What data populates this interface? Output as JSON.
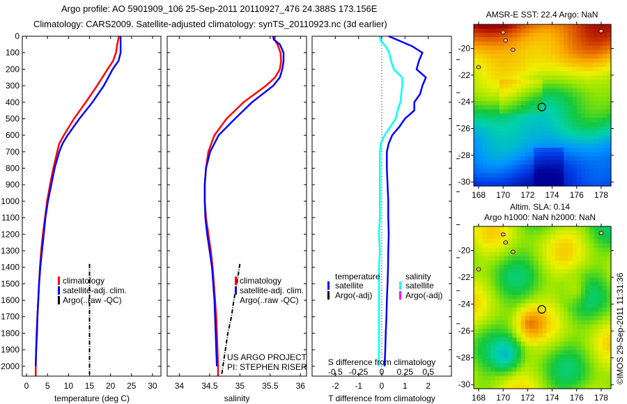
{
  "header": {
    "title_line1": "Argo profile: AO 5901909_106 25-Sep-2011 20110927_476 24.388S 173.156E",
    "title_line2": "Climatology: CARS2009. Satellite-adjusted climatology: synTS_20110923.nc (3d earlier)"
  },
  "colors": {
    "climatology": "#ff0000",
    "satellite": "#0000ff",
    "argo": "#000000",
    "salinity_satellite": "#00ffff",
    "salinity_argo": "#ff00ff"
  },
  "chart_data": [
    {
      "id": "temperature",
      "type": "line",
      "xlabel": "temperature (deg C)",
      "ylabel": "",
      "xlim": [
        -1,
        32
      ],
      "ylim": [
        2060,
        0
      ],
      "xticks": [
        0,
        5,
        10,
        15,
        20,
        25,
        30
      ],
      "yticks": [
        0,
        100,
        200,
        300,
        400,
        500,
        600,
        700,
        800,
        900,
        1000,
        1100,
        1200,
        1300,
        1400,
        1500,
        1600,
        1700,
        1800,
        1900,
        2000
      ],
      "series": [
        {
          "name": "climatology",
          "color": "#ff0000",
          "depth": [
            0,
            50,
            100,
            150,
            200,
            300,
            400,
            500,
            600,
            650,
            700,
            800,
            900,
            1000,
            1100,
            1200,
            1300,
            1400,
            1500,
            1600,
            1700,
            1800,
            1900,
            2000,
            2060
          ],
          "values": [
            22.0,
            21.6,
            21.3,
            20.6,
            19.3,
            16.8,
            14.1,
            11.3,
            8.9,
            7.8,
            7.3,
            6.4,
            5.6,
            4.9,
            4.4,
            3.9,
            3.5,
            3.2,
            3.0,
            2.8,
            2.6,
            2.4,
            2.3,
            2.2,
            2.2
          ]
        },
        {
          "name": "satellite-adj. clim.",
          "color": "#0000ff",
          "depth": [
            0,
            50,
            100,
            150,
            200,
            300,
            400,
            500,
            600,
            650,
            700,
            800,
            900,
            1000,
            1100,
            1200,
            1300,
            1400,
            1500,
            1600,
            1700,
            1800,
            1900,
            2000
          ],
          "values": [
            22.4,
            22.4,
            22.4,
            21.9,
            20.5,
            18.4,
            15.7,
            12.6,
            9.8,
            8.6,
            7.8,
            6.7,
            5.9,
            5.1,
            4.5,
            4.1,
            3.7,
            3.3,
            3.0,
            2.8,
            2.6,
            2.5,
            2.3,
            2.2
          ]
        },
        {
          "name": "Argo(..raw -QC)",
          "color": "#000000",
          "depth": [
            1380,
            1500,
            1600,
            1700,
            1800,
            1900,
            2000,
            2050
          ],
          "values": [
            15.0,
            15.0,
            15.0,
            15.0,
            15.0,
            15.0,
            15.0,
            15.0
          ]
        }
      ],
      "legend": [
        "climatology",
        "satellite-adj. clim.",
        "Argo(..raw -QC)"
      ]
    },
    {
      "id": "salinity",
      "type": "line",
      "xlabel": "salinity",
      "xlim": [
        33.8,
        36.1
      ],
      "ylim": [
        2060,
        0
      ],
      "xticks": [
        34,
        34.5,
        35,
        35.5,
        36
      ],
      "xtick_labels": [
        "34",
        "34.5",
        "35",
        "35.5",
        "36"
      ],
      "series": [
        {
          "name": "climatology",
          "color": "#ff0000",
          "depth": [
            0,
            20,
            50,
            100,
            150,
            200,
            250,
            300,
            400,
            500,
            600,
            700,
            800,
            900,
            1000,
            1100,
            1200,
            1300,
            1400,
            1500,
            1600,
            1700,
            1800,
            1900,
            2000,
            2060
          ],
          "values": [
            35.58,
            35.57,
            35.62,
            35.67,
            35.68,
            35.66,
            35.58,
            35.43,
            35.06,
            34.78,
            34.58,
            34.48,
            34.44,
            34.42,
            34.42,
            34.44,
            34.48,
            34.52,
            34.55,
            34.57,
            34.59,
            34.61,
            34.62,
            34.63,
            34.64,
            34.64
          ]
        },
        {
          "name": "satellite-adj. clim.",
          "color": "#0000ff",
          "depth": [
            0,
            20,
            50,
            100,
            150,
            200,
            250,
            300,
            400,
            500,
            600,
            700,
            800,
            900,
            1000,
            1100,
            1200,
            1300,
            1400,
            1500,
            1600,
            1700,
            1800,
            1900,
            2000
          ],
          "values": [
            35.55,
            35.56,
            35.66,
            35.72,
            35.72,
            35.7,
            35.66,
            35.55,
            35.2,
            34.92,
            34.65,
            34.51,
            34.44,
            34.42,
            34.42,
            34.43,
            34.46,
            34.5,
            34.54,
            34.56,
            34.58,
            34.59,
            34.6,
            34.61,
            34.62
          ]
        },
        {
          "name": "Argo(..raw -QC)",
          "color": "#000000",
          "depth": [
            1380,
            1500,
            1600,
            1700,
            1800,
            1900,
            2000,
            2050
          ],
          "values": [
            35.0,
            34.95,
            34.9,
            34.86,
            34.8,
            34.76,
            34.72,
            34.7
          ]
        }
      ],
      "legend": [
        "climatology",
        "satellite-adj. clim.",
        "Argo(..raw -QC)"
      ],
      "annotation": [
        "US ARGO PROJECT",
        "PI: STEPHEN RISER"
      ]
    },
    {
      "id": "difference",
      "type": "line",
      "xlabel": "T difference from climatology",
      "xlabel_top": "S difference from climatology",
      "xlim": [
        -3,
        3
      ],
      "ylim": [
        2060,
        0
      ],
      "xticks": [
        -2,
        -1,
        0,
        1,
        2
      ],
      "xtick_labels": [
        "-2",
        "-1",
        "0",
        "1",
        "2"
      ],
      "xticks_top": [
        -0.5,
        -0.25,
        0,
        0.25,
        0.5
      ],
      "xtick_labels_top": [
        "-0.5",
        "-0.25",
        "0",
        "0.25",
        "0.5"
      ],
      "series": [
        {
          "name": "temperature satellite",
          "color": "#0000ff",
          "depth": [
            0,
            30,
            60,
            100,
            150,
            200,
            250,
            300,
            350,
            400,
            450,
            500,
            550,
            600,
            650,
            700,
            800,
            900,
            1000,
            1100,
            1200,
            1300,
            1400,
            1500,
            1600,
            1700,
            1800,
            1900,
            2000
          ],
          "values": [
            0.3,
            0.8,
            1.3,
            1.75,
            1.6,
            1.5,
            1.9,
            1.75,
            1.65,
            1.4,
            1.4,
            1.0,
            0.75,
            0.45,
            0.3,
            0.22,
            0.22,
            0.25,
            0.28,
            0.28,
            0.3,
            0.28,
            0.27,
            0.25,
            0.22,
            0.2,
            0.17,
            0.15,
            0.12
          ]
        },
        {
          "name": "salinity satellite",
          "color": "#00ffff",
          "depth": [
            0,
            30,
            60,
            100,
            150,
            200,
            250,
            300,
            350,
            400,
            450,
            500,
            550,
            600,
            650,
            700,
            800,
            900,
            1000,
            1100,
            1200,
            1300,
            1400,
            1500,
            1600,
            1700,
            1800,
            1900,
            2000
          ],
          "values": [
            -0.02,
            -0.01,
            0.04,
            0.08,
            0.1,
            0.13,
            0.22,
            0.22,
            0.21,
            0.2,
            0.17,
            0.15,
            0.09,
            0.03,
            -0.01,
            -0.02,
            -0.02,
            -0.02,
            -0.02,
            -0.02,
            -0.03,
            -0.02,
            -0.03,
            -0.03,
            -0.03,
            -0.03,
            -0.03,
            -0.03,
            -0.03
          ]
        }
      ],
      "legend": {
        "temperature_heading": "temperature",
        "salinity_heading": "salinity",
        "items": [
          "satellite",
          "Argo(-adj)",
          "satellite",
          "Argo(-adj)"
        ]
      }
    },
    {
      "id": "sst-map",
      "type": "heatmap",
      "title": "AMSR-E SST: 22.4 Argo: NaN",
      "xlim": [
        167.6,
        178.8
      ],
      "ylim": [
        -30.3,
        -18.2
      ],
      "xticks": [
        168,
        170,
        172,
        174,
        176,
        178
      ],
      "yticks": [
        -20,
        -22,
        -24,
        -26,
        -28,
        -30
      ],
      "argo_position": {
        "lon": 173.156,
        "lat": -24.388
      }
    },
    {
      "id": "sla-map",
      "type": "heatmap",
      "title_line1": "Altim. SLA: 0.14",
      "title_line2": "Argo h1000: NaN h2000: NaN",
      "xlim": [
        167.6,
        178.8
      ],
      "ylim": [
        -30.3,
        -18.2
      ],
      "xticks": [
        168,
        170,
        172,
        174,
        176,
        178
      ],
      "yticks": [
        -20,
        -22,
        -24,
        -26,
        -28,
        -30
      ],
      "argo_position": {
        "lon": 173.156,
        "lat": -24.388
      }
    }
  ],
  "footer": {
    "credit": "©IMOS 29-Sep-2011 11:31:36"
  }
}
